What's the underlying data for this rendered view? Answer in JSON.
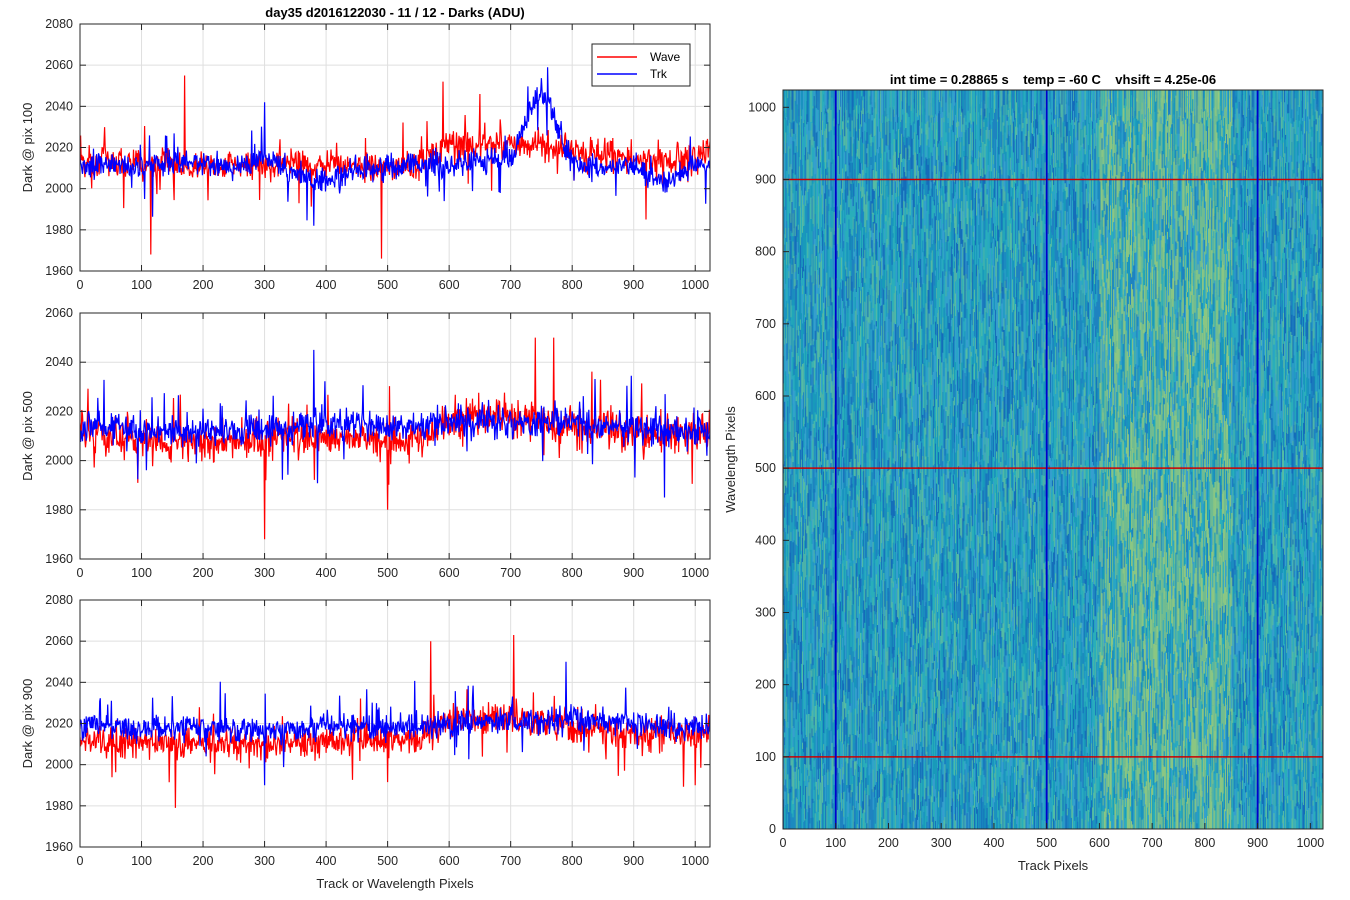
{
  "figure": {
    "suptitle": "day35 d2016122030 - 11 / 12 - Darks (ADU)",
    "shared_xlabel": "Track or Wavelength Pixels"
  },
  "chart_data": [
    {
      "type": "line",
      "ylabel": "Dark @ pix 100",
      "xlim": [
        0,
        1024
      ],
      "ylim": [
        1960,
        2080
      ],
      "xticks": [
        0,
        100,
        200,
        300,
        400,
        500,
        600,
        700,
        800,
        900,
        1000
      ],
      "yticks": [
        1960,
        1980,
        2000,
        2020,
        2040,
        2060,
        2080
      ],
      "grid": true,
      "legend": {
        "position": "top-right",
        "entries": [
          "Wave",
          "Trk"
        ]
      },
      "series": [
        {
          "name": "Wave",
          "color": "#ff0000",
          "x": [
            0,
            50,
            100,
            150,
            200,
            250,
            300,
            350,
            400,
            450,
            500,
            550,
            600,
            650,
            700,
            750,
            800,
            850,
            900,
            950,
            1000,
            1024
          ],
          "values": [
            2013,
            2014,
            2011,
            2012,
            2010,
            2011,
            2011,
            2013,
            2012,
            2011,
            2010,
            2011,
            2022,
            2021,
            2022,
            2020,
            2019,
            2016,
            2015,
            2014,
            2016,
            2018
          ],
          "spikes": [
            [
              115,
              1968
            ],
            [
              170,
              2055
            ],
            [
              490,
              1966
            ],
            [
              590,
              2052
            ],
            [
              650,
              2046
            ],
            [
              920,
              1985
            ]
          ]
        },
        {
          "name": "Trk",
          "color": "#0000ff",
          "x": [
            0,
            50,
            100,
            150,
            200,
            250,
            300,
            350,
            400,
            450,
            500,
            550,
            600,
            650,
            700,
            750,
            800,
            850,
            900,
            950,
            1000,
            1024
          ],
          "values": [
            2010,
            2012,
            2011,
            2013,
            2012,
            2010,
            2016,
            2008,
            2003,
            2010,
            2011,
            2012,
            2012,
            2013,
            2014,
            2050,
            2012,
            2011,
            2011,
            2003,
            2011,
            2012
          ],
          "spikes": [
            [
              380,
              1982
            ],
            [
              760,
              2059
            ],
            [
              300,
              2042
            ]
          ]
        }
      ]
    },
    {
      "type": "line",
      "ylabel": "Dark @ pix 500",
      "xlim": [
        0,
        1024
      ],
      "ylim": [
        1960,
        2060
      ],
      "xticks": [
        0,
        100,
        200,
        300,
        400,
        500,
        600,
        700,
        800,
        900,
        1000
      ],
      "yticks": [
        1960,
        1980,
        2000,
        2020,
        2040,
        2060
      ],
      "grid": true,
      "series": [
        {
          "name": "Wave",
          "color": "#ff0000",
          "x": [
            0,
            50,
            100,
            150,
            200,
            250,
            300,
            350,
            400,
            450,
            500,
            550,
            600,
            650,
            700,
            750,
            800,
            850,
            900,
            950,
            1000,
            1024
          ],
          "values": [
            2011,
            2010,
            2009,
            2008,
            2008,
            2008,
            2008,
            2009,
            2008,
            2009,
            2008,
            2008,
            2016,
            2018,
            2017,
            2016,
            2014,
            2013,
            2012,
            2011,
            2012,
            2012
          ],
          "spikes": [
            [
              300,
              1968
            ],
            [
              500,
              1980
            ],
            [
              770,
              2050
            ],
            [
              740,
              2050
            ]
          ]
        },
        {
          "name": "Trk",
          "color": "#0000ff",
          "x": [
            0,
            50,
            100,
            150,
            200,
            250,
            300,
            350,
            400,
            450,
            500,
            550,
            600,
            650,
            700,
            750,
            800,
            850,
            900,
            950,
            1000,
            1024
          ],
          "values": [
            2013,
            2014,
            2012,
            2012,
            2012,
            2012,
            2013,
            2014,
            2015,
            2014,
            2013,
            2014,
            2015,
            2016,
            2016,
            2016,
            2015,
            2014,
            2013,
            2012,
            2013,
            2013
          ],
          "spikes": [
            [
              380,
              2045
            ],
            [
              950,
              1985
            ]
          ]
        }
      ]
    },
    {
      "type": "line",
      "ylabel": "Dark @ pix 900",
      "xlim": [
        0,
        1024
      ],
      "ylim": [
        1960,
        2080
      ],
      "xticks": [
        0,
        100,
        200,
        300,
        400,
        500,
        600,
        700,
        800,
        900,
        1000
      ],
      "yticks": [
        1960,
        1980,
        2000,
        2020,
        2040,
        2060,
        2080
      ],
      "grid": true,
      "series": [
        {
          "name": "Wave",
          "color": "#ff0000",
          "x": [
            0,
            50,
            100,
            150,
            200,
            250,
            300,
            350,
            400,
            450,
            500,
            550,
            600,
            650,
            700,
            750,
            800,
            850,
            900,
            950,
            1000,
            1024
          ],
          "values": [
            2010,
            2011,
            2011,
            2010,
            2010,
            2010,
            2010,
            2011,
            2011,
            2012,
            2012,
            2013,
            2021,
            2022,
            2023,
            2021,
            2018,
            2016,
            2015,
            2015,
            2015,
            2016
          ],
          "spikes": [
            [
              155,
              1979
            ],
            [
              705,
              2063
            ],
            [
              570,
              2060
            ],
            [
              1000,
              1990
            ]
          ]
        },
        {
          "name": "Trk",
          "color": "#0000ff",
          "x": [
            0,
            50,
            100,
            150,
            200,
            250,
            300,
            350,
            400,
            450,
            500,
            550,
            600,
            650,
            700,
            750,
            800,
            850,
            900,
            950,
            1000,
            1024
          ],
          "values": [
            2019,
            2019,
            2018,
            2018,
            2018,
            2017,
            2017,
            2018,
            2018,
            2018,
            2018,
            2019,
            2020,
            2021,
            2021,
            2021,
            2022,
            2021,
            2020,
            2018,
            2018,
            2019
          ],
          "spikes": [
            [
              790,
              2050
            ],
            [
              300,
              1990
            ]
          ]
        }
      ]
    },
    {
      "type": "heatmap",
      "title": "int time = 0.28865 s    temp = -60 C    vhsift = 4.25e-06",
      "xlabel": "Track Pixels",
      "ylabel": "Wavelength Pixels",
      "xlim": [
        0,
        1024
      ],
      "ylim": [
        0,
        1024
      ],
      "xticks": [
        0,
        100,
        200,
        300,
        400,
        500,
        600,
        700,
        800,
        900,
        1000
      ],
      "yticks": [
        0,
        100,
        200,
        300,
        400,
        500,
        600,
        700,
        800,
        900,
        1000
      ],
      "colormap": "parula",
      "base_color": "#1f9fc4",
      "bright_band": {
        "track_range": [
          600,
          850
        ],
        "color": "#7cc08a"
      },
      "overlay_lines": {
        "vertical_track_pixels": [
          100,
          500,
          900
        ],
        "vertical_color": "#0000cc",
        "horizontal_wavelength_pixels": [
          100,
          500,
          900
        ],
        "horizontal_color": "#cc0000"
      }
    }
  ]
}
